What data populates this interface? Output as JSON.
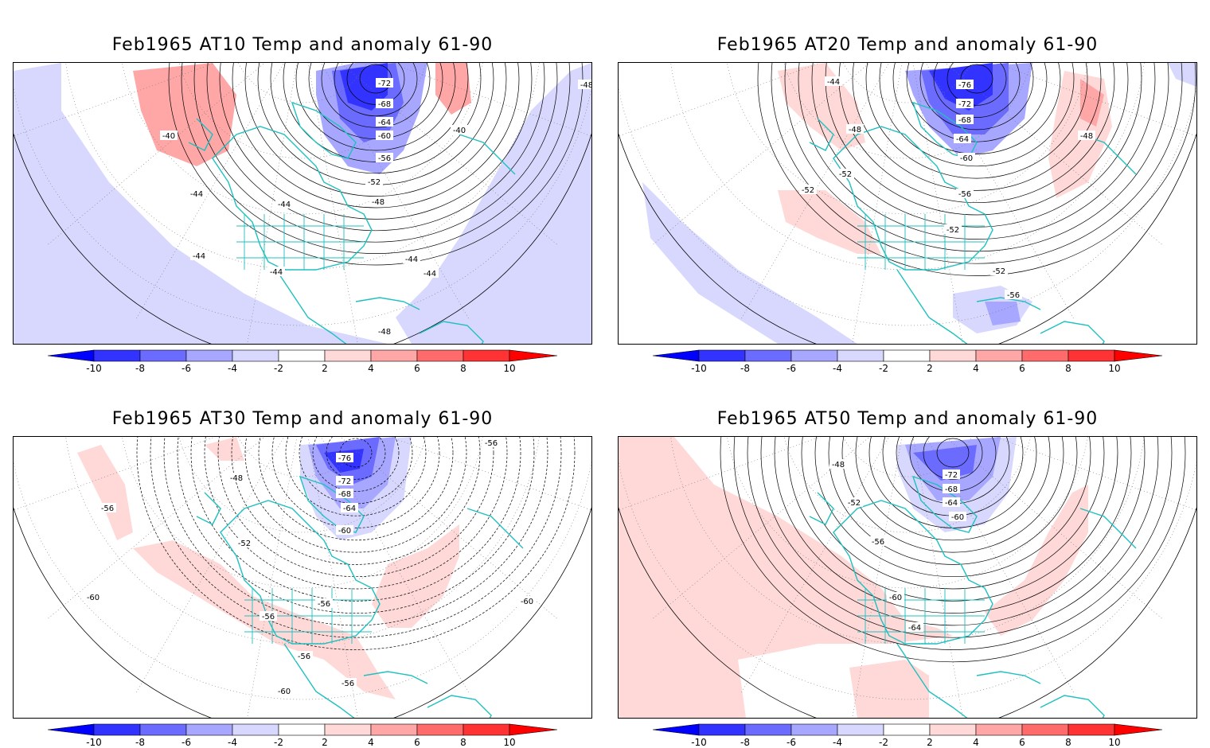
{
  "panels": [
    {
      "id": "at10",
      "title": "Feb1965 AT10 Temp and anomaly 61-90",
      "contour_labels": [
        "-72",
        "-68",
        "-64",
        "-60",
        "-56",
        "-52",
        "-48",
        "-44",
        "-44",
        "-44",
        "-44",
        "-44",
        "-44",
        "-40",
        "-40",
        "-48",
        "-48"
      ]
    },
    {
      "id": "at20",
      "title": "Feb1965 AT20 Temp and anomaly 61-90",
      "contour_labels": [
        "-76",
        "-72",
        "-68",
        "-64",
        "-60",
        "-56",
        "-52",
        "-52",
        "-52",
        "-52",
        "-56",
        "-48",
        "-48",
        "-44"
      ]
    },
    {
      "id": "at30",
      "title": "Feb1965 AT30 Temp and anomaly 61-90",
      "contour_labels": [
        "-76",
        "-72",
        "-68",
        "-64",
        "-60",
        "-56",
        "-56",
        "-56",
        "-56",
        "-52",
        "-48",
        "-60",
        "-60",
        "-60",
        "-56",
        "-56"
      ]
    },
    {
      "id": "at50",
      "title": "Feb1965 AT50 Temp and anomaly 61-90",
      "contour_labels": [
        "-72",
        "-68",
        "-64",
        "-60",
        "-56",
        "-52",
        "-48",
        "-60",
        "-64"
      ]
    }
  ],
  "colorbar": {
    "labels": [
      "-10",
      "-8",
      "-6",
      "-4",
      "-2",
      "2",
      "4",
      "6",
      "8",
      "10"
    ],
    "colors": {
      "n10": "#0000ff",
      "n8": "#3333ff",
      "n6": "#6b6bff",
      "n4": "#a7a7ff",
      "n2": "#d8d8ff",
      "zero": "#ffffff",
      "p2": "#ffd8d8",
      "p4": "#ffa7a7",
      "p6": "#ff6b6b",
      "p8": "#ff3333",
      "p10": "#ff0000"
    }
  },
  "colors": {
    "coast": "#20c0c0",
    "contour": "#000000",
    "grid": "#777777"
  }
}
